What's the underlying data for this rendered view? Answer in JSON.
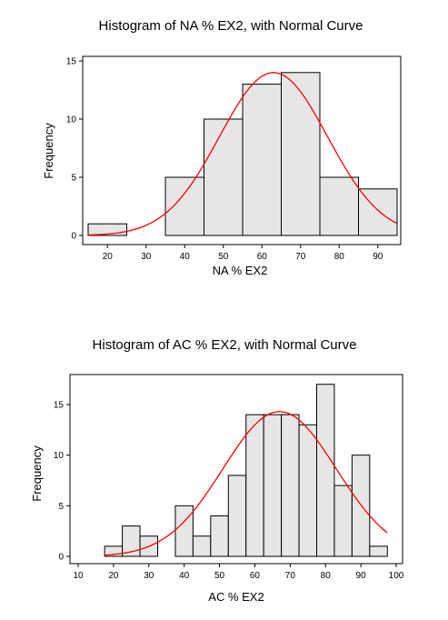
{
  "colors": {
    "bar_fill": "#e6e6e6",
    "bar_stroke": "#000000",
    "curve": "#ff0000",
    "frame": "#000000"
  },
  "chart_data": [
    {
      "type": "bar",
      "subtype": "histogram",
      "title": "Histogram of NA % EX2, with Normal Curve",
      "xlabel": "NA % EX2",
      "ylabel": "Frequency",
      "xlim": [
        15,
        95
      ],
      "ylim": [
        0,
        15
      ],
      "xticks": [
        20,
        30,
        40,
        50,
        60,
        70,
        80,
        90
      ],
      "yticks": [
        0,
        5,
        10,
        15
      ],
      "bin_width": 10,
      "bins": [
        {
          "x": 20,
          "value": 1
        },
        {
          "x": 30,
          "value": 0
        },
        {
          "x": 40,
          "value": 5
        },
        {
          "x": 50,
          "value": 10
        },
        {
          "x": 60,
          "value": 13
        },
        {
          "x": 70,
          "value": 14
        },
        {
          "x": 80,
          "value": 5
        },
        {
          "x": 90,
          "value": 4
        }
      ],
      "normal_curve": {
        "mean": 63,
        "sd": 14,
        "peak": 14
      },
      "grid": false,
      "legend": "none"
    },
    {
      "type": "bar",
      "subtype": "histogram",
      "title": "Histogram of AC % EX2, with Normal Curve",
      "xlabel": "AC % EX2",
      "ylabel": "Frequency",
      "xlim": [
        10,
        100
      ],
      "ylim": [
        0,
        17
      ],
      "xticks": [
        10,
        20,
        30,
        40,
        50,
        60,
        70,
        80,
        90,
        100
      ],
      "yticks": [
        0,
        5,
        10,
        15
      ],
      "bin_width": 5,
      "bins": [
        {
          "x": 20,
          "value": 1
        },
        {
          "x": 25,
          "value": 3
        },
        {
          "x": 30,
          "value": 2
        },
        {
          "x": 35,
          "value": 0
        },
        {
          "x": 40,
          "value": 5
        },
        {
          "x": 45,
          "value": 2
        },
        {
          "x": 50,
          "value": 4
        },
        {
          "x": 55,
          "value": 8
        },
        {
          "x": 60,
          "value": 14
        },
        {
          "x": 65,
          "value": 14
        },
        {
          "x": 70,
          "value": 14
        },
        {
          "x": 75,
          "value": 13
        },
        {
          "x": 80,
          "value": 17
        },
        {
          "x": 85,
          "value": 7
        },
        {
          "x": 90,
          "value": 10
        },
        {
          "x": 95,
          "value": 1
        }
      ],
      "normal_curve": {
        "mean": 67,
        "sd": 16,
        "peak": 14.3
      },
      "grid": false,
      "legend": "none"
    }
  ]
}
